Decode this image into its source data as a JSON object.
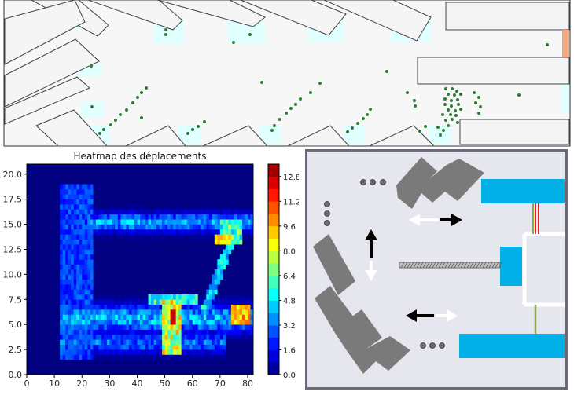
{
  "chart_data": [
    {
      "type": "scatter",
      "title": "",
      "description_role": "simulation-top-view",
      "colors": {
        "agent": "#2e7d32",
        "zone": "#e0ffff",
        "obstacle": "#f5f5f5",
        "exit": "#f4a582"
      },
      "points": [
        [
          211,
          38
        ],
        [
          211,
          44
        ],
        [
          297,
          54
        ],
        [
          318,
          44
        ],
        [
          116,
          84
        ],
        [
          492,
          91
        ],
        [
          696,
          57
        ],
        [
          333,
          105
        ],
        [
          407,
          106
        ],
        [
          395,
          118
        ],
        [
          382,
          126
        ],
        [
          376,
          133
        ],
        [
          370,
          138
        ],
        [
          364,
          144
        ],
        [
          356,
          152
        ],
        [
          349,
          160
        ],
        [
          346,
          166
        ],
        [
          186,
          112
        ],
        [
          180,
          118
        ],
        [
          175,
          124
        ],
        [
          169,
          131
        ],
        [
          161,
          140
        ],
        [
          153,
          146
        ],
        [
          147,
          153
        ],
        [
          141,
          159
        ],
        [
          132,
          165
        ],
        [
          127,
          170
        ],
        [
          180,
          150
        ],
        [
          117,
          136
        ],
        [
          260,
          155
        ],
        [
          252,
          161
        ],
        [
          245,
          165
        ],
        [
          239,
          170
        ],
        [
          471,
          139
        ],
        [
          467,
          146
        ],
        [
          462,
          151
        ],
        [
          455,
          157
        ],
        [
          448,
          163
        ],
        [
          442,
          168
        ],
        [
          518,
          118
        ],
        [
          527,
          128
        ],
        [
          528,
          135
        ],
        [
          541,
          161
        ],
        [
          534,
          167
        ],
        [
          567,
          113
        ],
        [
          575,
          113
        ],
        [
          581,
          116
        ],
        [
          570,
          120
        ],
        [
          578,
          121
        ],
        [
          586,
          120
        ],
        [
          566,
          126
        ],
        [
          574,
          128
        ],
        [
          582,
          127
        ],
        [
          566,
          133
        ],
        [
          574,
          135
        ],
        [
          583,
          133
        ],
        [
          570,
          140
        ],
        [
          579,
          141
        ],
        [
          586,
          139
        ],
        [
          563,
          146
        ],
        [
          573,
          146
        ],
        [
          580,
          147
        ],
        [
          567,
          153
        ],
        [
          575,
          152
        ],
        [
          582,
          156
        ],
        [
          570,
          160
        ],
        [
          564,
          166
        ],
        [
          557,
          162
        ],
        [
          560,
          172
        ],
        [
          603,
          118
        ],
        [
          609,
          124
        ],
        [
          605,
          131
        ],
        [
          611,
          136
        ],
        [
          609,
          144
        ],
        [
          660,
          121
        ]
      ]
    },
    {
      "type": "heatmap",
      "title": "Heatmap des déplacements",
      "xlabel": "",
      "ylabel": "",
      "xlim": [
        0,
        82
      ],
      "ylim": [
        0,
        21
      ],
      "xticks": [
        "0",
        "10",
        "20",
        "30",
        "40",
        "50",
        "60",
        "70",
        "80"
      ],
      "yticks": [
        "0.0",
        "2.5",
        "5.0",
        "7.5",
        "10.0",
        "12.5",
        "15.0",
        "17.5",
        "20.0"
      ],
      "colorbar": {
        "min": 0,
        "max": 13.6,
        "ticks": [
          "0.0",
          "1.6",
          "3.2",
          "4.8",
          "6.4",
          "8.0",
          "9.6",
          "11.2",
          "12.8"
        ]
      }
    },
    {
      "type": "diagram",
      "title": "",
      "colors": {
        "room": "#e6e6ee",
        "obstacle": "#7a7a7a",
        "door": "#00b0e6",
        "wall": "#ffffff"
      }
    }
  ]
}
